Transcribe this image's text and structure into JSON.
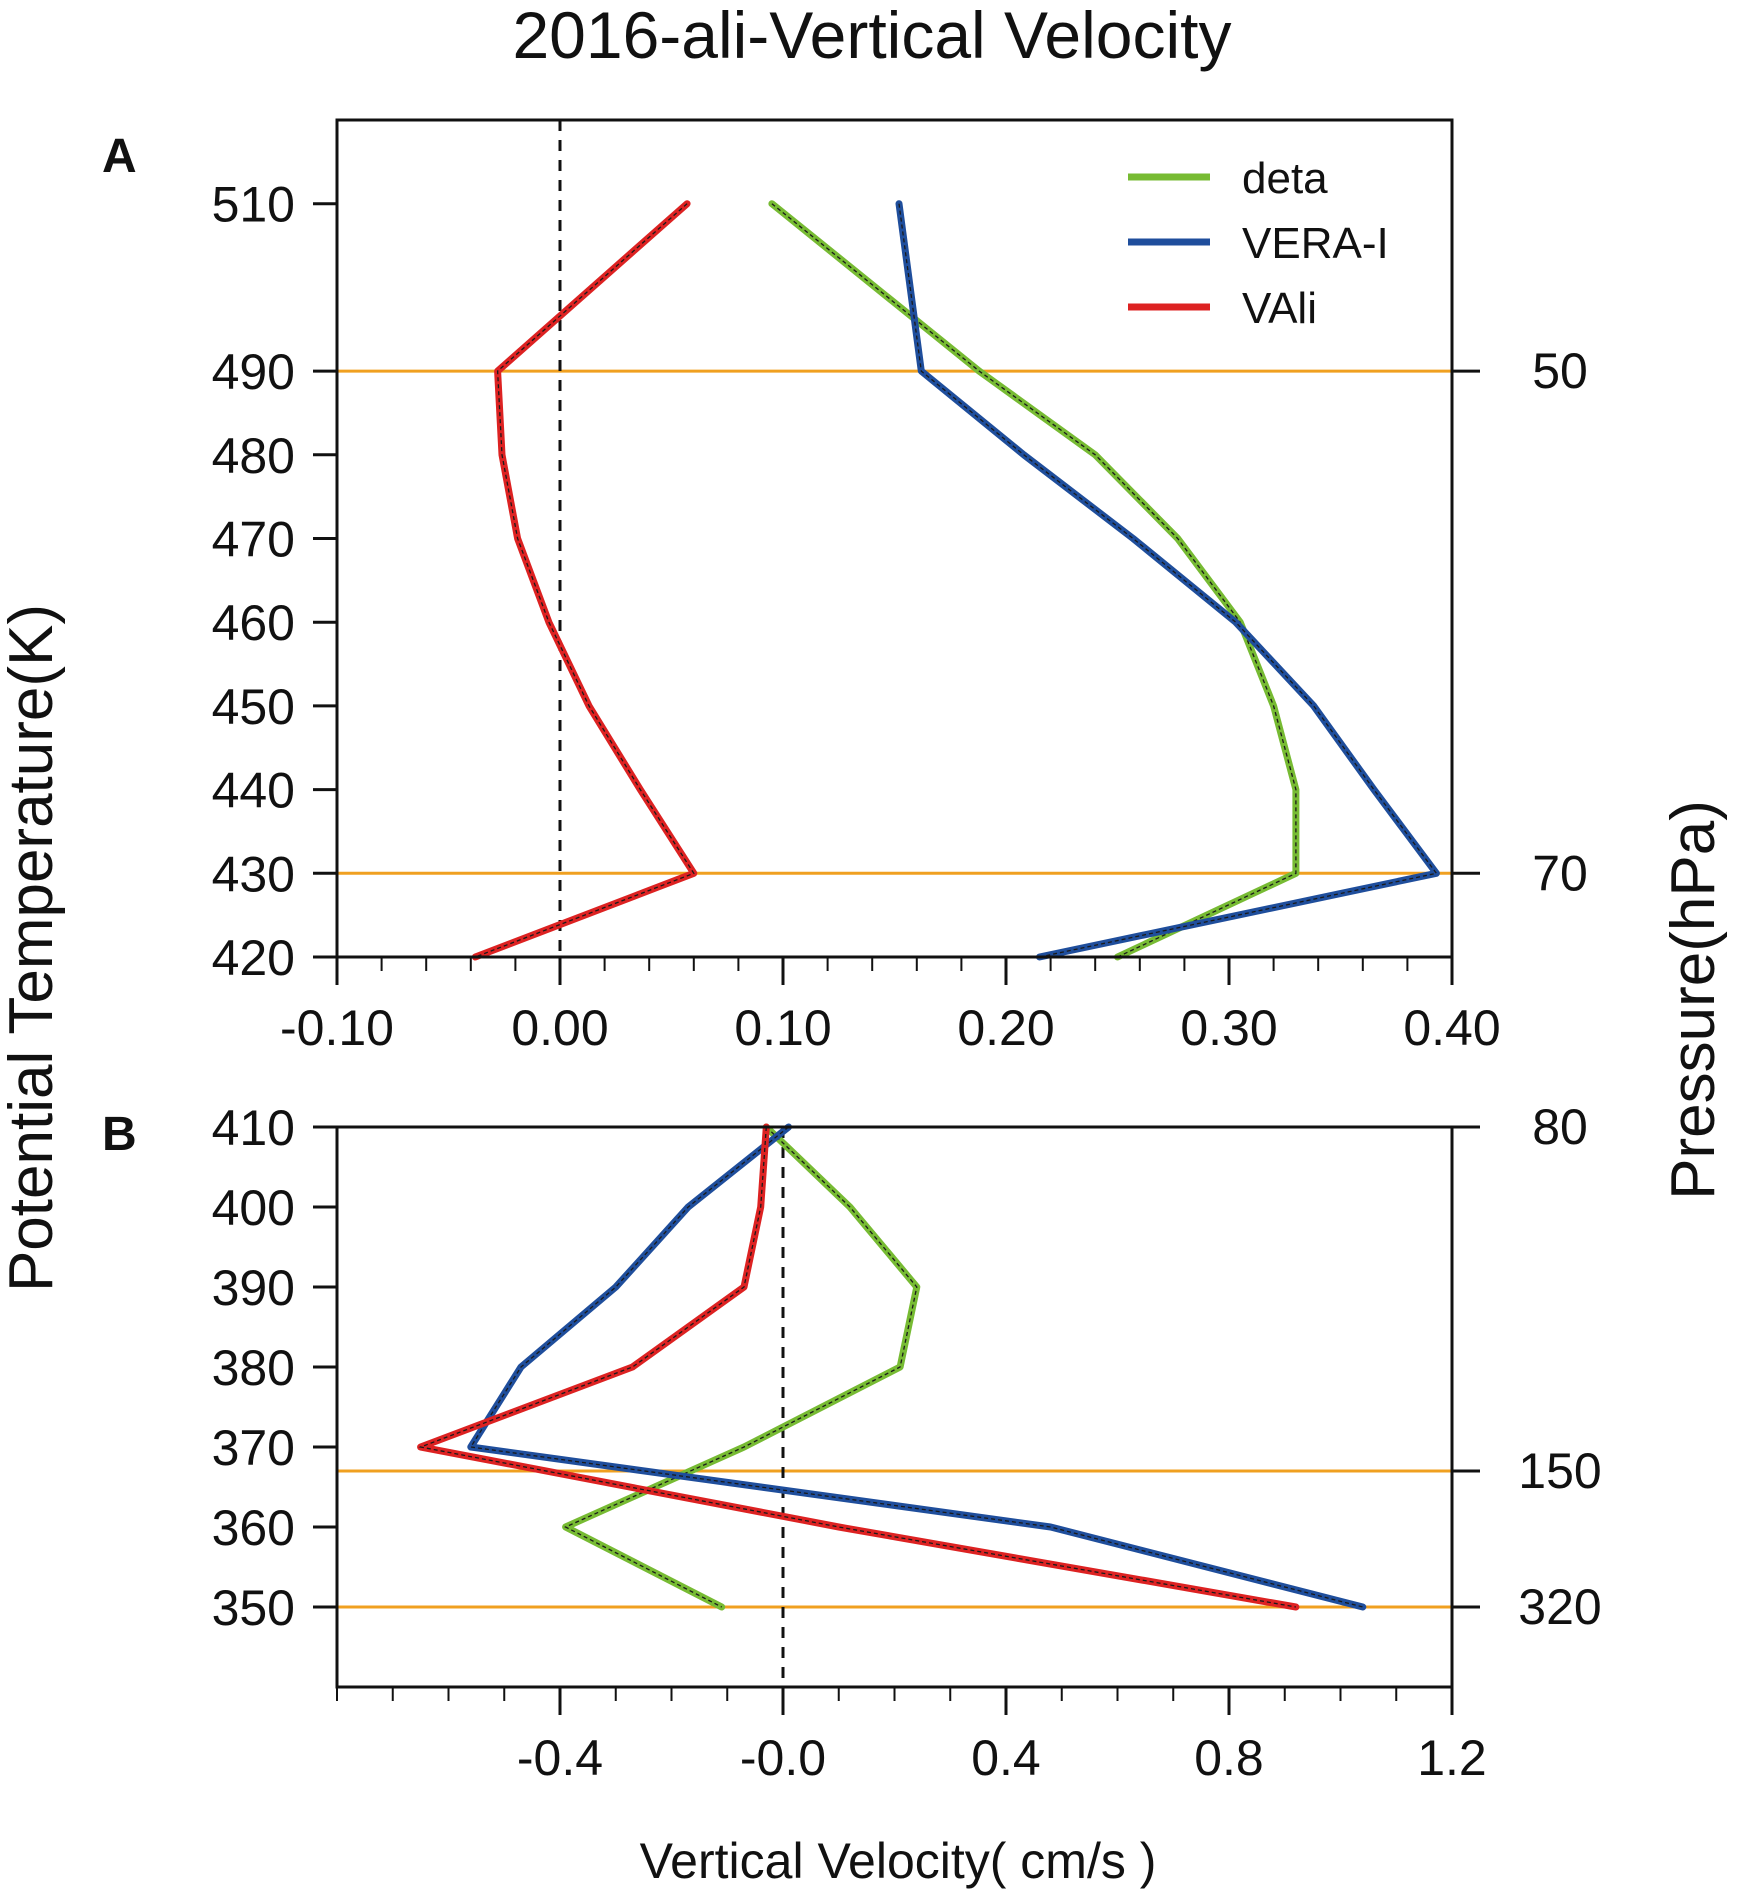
{
  "title": "2016-ali-Vertical Velocity",
  "ylabel": "Potential Temperature(K)",
  "ylabel_right": "Pressure(hPa)",
  "xlabel": "Vertical Velocity( cm/s )",
  "colors": {
    "deta": "#77bb33",
    "vera": "#1f4e9c",
    "vali": "#dd2222",
    "pressure_line": "#f0a020",
    "zero_line": "#111111"
  },
  "legend": [
    "deta",
    "VERA-I",
    "VAli"
  ],
  "chart_data": [
    {
      "panel": "A",
      "type": "line",
      "orientation": "vertical-profile",
      "xlim": [
        -0.1,
        0.4
      ],
      "ylim": [
        420,
        520
      ],
      "xticks": [
        "-0.10",
        "0.00",
        "0.10",
        "0.20",
        "0.30",
        "0.40"
      ],
      "xtick_values": [
        -0.1,
        0.0,
        0.1,
        0.2,
        0.3,
        0.4
      ],
      "yticks": [
        "510",
        "490",
        "480",
        "470",
        "460",
        "450",
        "440",
        "430",
        "420"
      ],
      "ytick_values": [
        510,
        490,
        480,
        470,
        460,
        450,
        440,
        430,
        420
      ],
      "pressure_levels": [
        {
          "theta": 490,
          "label": "50"
        },
        {
          "theta": 430,
          "label": "70"
        }
      ],
      "series": [
        {
          "name": "deta",
          "theta": [
            510,
            490,
            480,
            470,
            460,
            450,
            440,
            430,
            420
          ],
          "values": [
            0.095,
            0.188,
            0.24,
            0.277,
            0.305,
            0.32,
            0.33,
            0.33,
            0.25
          ]
        },
        {
          "name": "VERA-I",
          "theta": [
            510,
            490,
            480,
            470,
            460,
            450,
            440,
            430,
            420
          ],
          "values": [
            0.152,
            0.162,
            0.208,
            0.257,
            0.303,
            0.338,
            0.365,
            0.393,
            0.215
          ]
        },
        {
          "name": "VAli",
          "theta": [
            510,
            490,
            480,
            470,
            460,
            450,
            440,
            430,
            420
          ],
          "values": [
            0.057,
            -0.028,
            -0.026,
            -0.019,
            -0.005,
            0.013,
            0.036,
            0.06,
            -0.038
          ]
        }
      ]
    },
    {
      "panel": "B",
      "type": "line",
      "orientation": "vertical-profile",
      "xlim": [
        -0.8,
        1.2
      ],
      "ylim": [
        340,
        410
      ],
      "xticks": [
        "-0.4",
        "-0.0",
        "0.4",
        "0.8",
        "1.2"
      ],
      "xtick_values": [
        -0.4,
        0.0,
        0.4,
        0.8,
        1.2
      ],
      "yticks": [
        "410",
        "400",
        "390",
        "380",
        "370",
        "360",
        "350"
      ],
      "ytick_values": [
        410,
        400,
        390,
        380,
        370,
        360,
        350
      ],
      "pressure_levels": [
        {
          "theta": 410,
          "label": "80"
        },
        {
          "theta": 367,
          "label": "150"
        },
        {
          "theta": 350,
          "label": "320"
        }
      ],
      "series": [
        {
          "name": "deta",
          "theta": [
            410,
            400,
            390,
            380,
            370,
            360,
            350
          ],
          "values": [
            -0.03,
            0.12,
            0.24,
            0.21,
            -0.07,
            -0.39,
            -0.11
          ]
        },
        {
          "name": "VERA-I",
          "theta": [
            410,
            400,
            390,
            380,
            370,
            360,
            350
          ],
          "values": [
            0.01,
            -0.17,
            -0.3,
            -0.47,
            -0.56,
            0.48,
            1.04
          ]
        },
        {
          "name": "VAli",
          "theta": [
            410,
            400,
            390,
            380,
            370,
            360,
            350
          ],
          "values": [
            -0.03,
            -0.04,
            -0.07,
            -0.27,
            -0.65,
            0.1,
            0.92
          ]
        }
      ]
    }
  ]
}
